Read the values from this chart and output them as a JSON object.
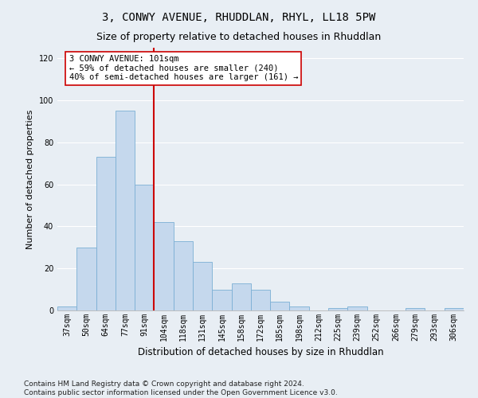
{
  "title": "3, CONWY AVENUE, RHUDDLAN, RHYL, LL18 5PW",
  "subtitle": "Size of property relative to detached houses in Rhuddlan",
  "xlabel": "Distribution of detached houses by size in Rhuddlan",
  "ylabel": "Number of detached properties",
  "categories": [
    "37sqm",
    "50sqm",
    "64sqm",
    "77sqm",
    "91sqm",
    "104sqm",
    "118sqm",
    "131sqm",
    "145sqm",
    "158sqm",
    "172sqm",
    "185sqm",
    "198sqm",
    "212sqm",
    "225sqm",
    "239sqm",
    "252sqm",
    "266sqm",
    "279sqm",
    "293sqm",
    "306sqm"
  ],
  "values": [
    2,
    30,
    73,
    95,
    60,
    42,
    33,
    23,
    10,
    13,
    10,
    4,
    2,
    0,
    1,
    2,
    0,
    0,
    1,
    0,
    1
  ],
  "bar_color": "#c5d8ed",
  "bar_edge_color": "#7bafd4",
  "vline_x_index": 5,
  "vline_color": "#cc0000",
  "annotation_text": "3 CONWY AVENUE: 101sqm\n← 59% of detached houses are smaller (240)\n40% of semi-detached houses are larger (161) →",
  "annotation_box_color": "#ffffff",
  "annotation_box_edge": "#cc0000",
  "ylim": [
    0,
    125
  ],
  "yticks": [
    0,
    20,
    40,
    60,
    80,
    100,
    120
  ],
  "footer": "Contains HM Land Registry data © Crown copyright and database right 2024.\nContains public sector information licensed under the Open Government Licence v3.0.",
  "bg_color": "#e8eef4",
  "grid_color": "#ffffff",
  "title_fontsize": 10,
  "subtitle_fontsize": 9,
  "xlabel_fontsize": 8.5,
  "ylabel_fontsize": 8,
  "tick_fontsize": 7,
  "annotation_fontsize": 7.5,
  "footer_fontsize": 6.5
}
